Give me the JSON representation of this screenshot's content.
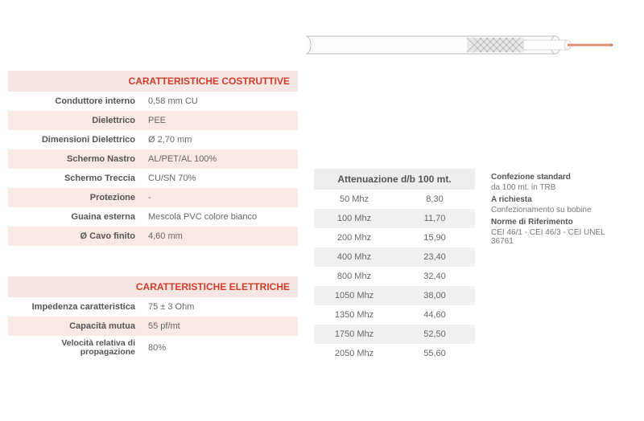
{
  "constructive": {
    "title": "CARATTERISTICHE COSTRUTTIVE",
    "rows": [
      {
        "label": "Conduttore interno",
        "value": "0,58 mm CU"
      },
      {
        "label": "Dielettrico",
        "value": "PEE"
      },
      {
        "label": "Dimensioni Dielettrico",
        "value": "Ø 2,70 mm"
      },
      {
        "label": "Schermo Nastro",
        "value": "AL/PET/AL 100%"
      },
      {
        "label": "Schermo Treccia",
        "value": "CU/SN 70%"
      },
      {
        "label": "Protezione",
        "value": "-"
      },
      {
        "label": "Guaina esterna",
        "value": "Mescola PVC colore bianco"
      },
      {
        "label": "Ø Cavo finito",
        "value": "4,60 mm"
      }
    ]
  },
  "electrical": {
    "title": "CARATTERISTICHE ELETTRICHE",
    "rows": [
      {
        "label": "Impedenza caratteristica",
        "value": "75 ± 3 Ohm"
      },
      {
        "label": "Capacità mutua",
        "value": "55 pf/mt"
      },
      {
        "label": "Velocità relativa di propagazione",
        "value": "80%"
      }
    ]
  },
  "attenuation": {
    "title": "Attenuazione d/b 100 mt.",
    "rows": [
      {
        "freq": "50 Mhz",
        "val": "8,30"
      },
      {
        "freq": "100 Mhz",
        "val": "11,70"
      },
      {
        "freq": "200 Mhz",
        "val": "15,90"
      },
      {
        "freq": "400 Mhz",
        "val": "23,40"
      },
      {
        "freq": "800 Mhz",
        "val": "32,40"
      },
      {
        "freq": "1050 Mhz",
        "val": "38,00"
      },
      {
        "freq": "1350 Mhz",
        "val": "44,60"
      },
      {
        "freq": "1750 Mhz",
        "val": "52,50"
      },
      {
        "freq": "2050 Mhz",
        "val": "55,60"
      }
    ]
  },
  "packaging": {
    "l1": "Confezione standard",
    "l2": "da 100 mt. in TRB",
    "l3": "A richiesta",
    "l4": "Confezionamento su bobine",
    "l5": "Norme di Riferimento",
    "l6": "CEI 46/1 - CEI 46/3 - CEI UNEL 36761"
  },
  "colors": {
    "accent": "#d23c2a",
    "row_pink": "#f9e8e4",
    "row_gray": "#f0f0f0",
    "header_gray": "#eee",
    "text": "#555"
  }
}
